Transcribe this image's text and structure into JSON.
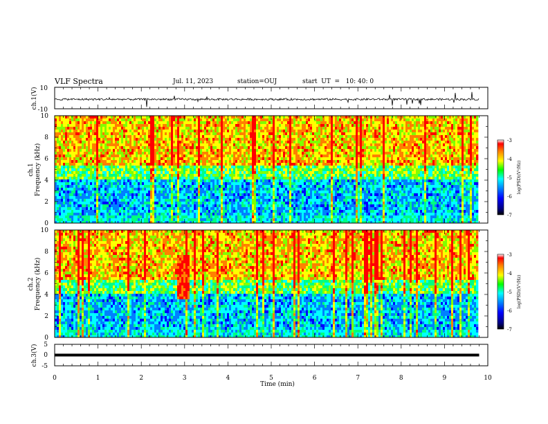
{
  "header": {
    "title": "VLF Spectra",
    "date": "Jul. 11, 2023",
    "station": "station=OUJ",
    "start": "start  UT  =   10: 40: 0"
  },
  "chart_data": [
    {
      "type": "line",
      "panel": "ch1-waveform",
      "ylabel": "ch.1(V)",
      "ylim": [
        -10,
        10
      ],
      "yticks": [
        "10",
        "-10"
      ],
      "x_range_min": [
        0,
        9.8
      ],
      "description_baseline_v": -1.2
    },
    {
      "type": "heatmap",
      "panel": "ch1-spectrogram",
      "ylabel_lines": [
        "ch.1",
        "Frequency (kHz)"
      ],
      "ylim": [
        0,
        10
      ],
      "yticks": [
        "10",
        "8",
        "6",
        "4",
        "2",
        "0"
      ],
      "colorbar": {
        "label": "log(PSD)(V²/Hz)",
        "range": [
          -7,
          -3
        ],
        "ticks": [
          "-3",
          "-4",
          "-5",
          "-6",
          "-7"
        ]
      }
    },
    {
      "type": "heatmap",
      "panel": "ch2-spectrogram",
      "ylabel_lines": [
        "ch.2",
        "Frequency (kHz)"
      ],
      "ylim": [
        0,
        10
      ],
      "yticks": [
        "10",
        "8",
        "6",
        "4",
        "2",
        "0"
      ],
      "colorbar": {
        "label": "log(PSD)(V²/Hz)",
        "range": [
          -7,
          -3
        ],
        "ticks": [
          "-3",
          "-4",
          "-5",
          "-6",
          "-7"
        ]
      }
    },
    {
      "type": "line",
      "panel": "ch3-waveform",
      "ylabel": "ch.3(V)",
      "ylim": [
        -5,
        5
      ],
      "yticks": [
        "5",
        "0",
        "-5"
      ],
      "level_v": 0
    }
  ],
  "xaxis": {
    "label": "Time (min)",
    "xlim": [
      0,
      10
    ],
    "ticks": [
      "0",
      "1",
      "2",
      "3",
      "4",
      "5",
      "6",
      "7",
      "8",
      "9",
      "10"
    ]
  },
  "colors": {
    "scale": [
      "#000080",
      "#0000ff",
      "#0080ff",
      "#00ffff",
      "#00ff80",
      "#80ff00",
      "#ffff00",
      "#ff8000",
      "#ff0000"
    ]
  }
}
